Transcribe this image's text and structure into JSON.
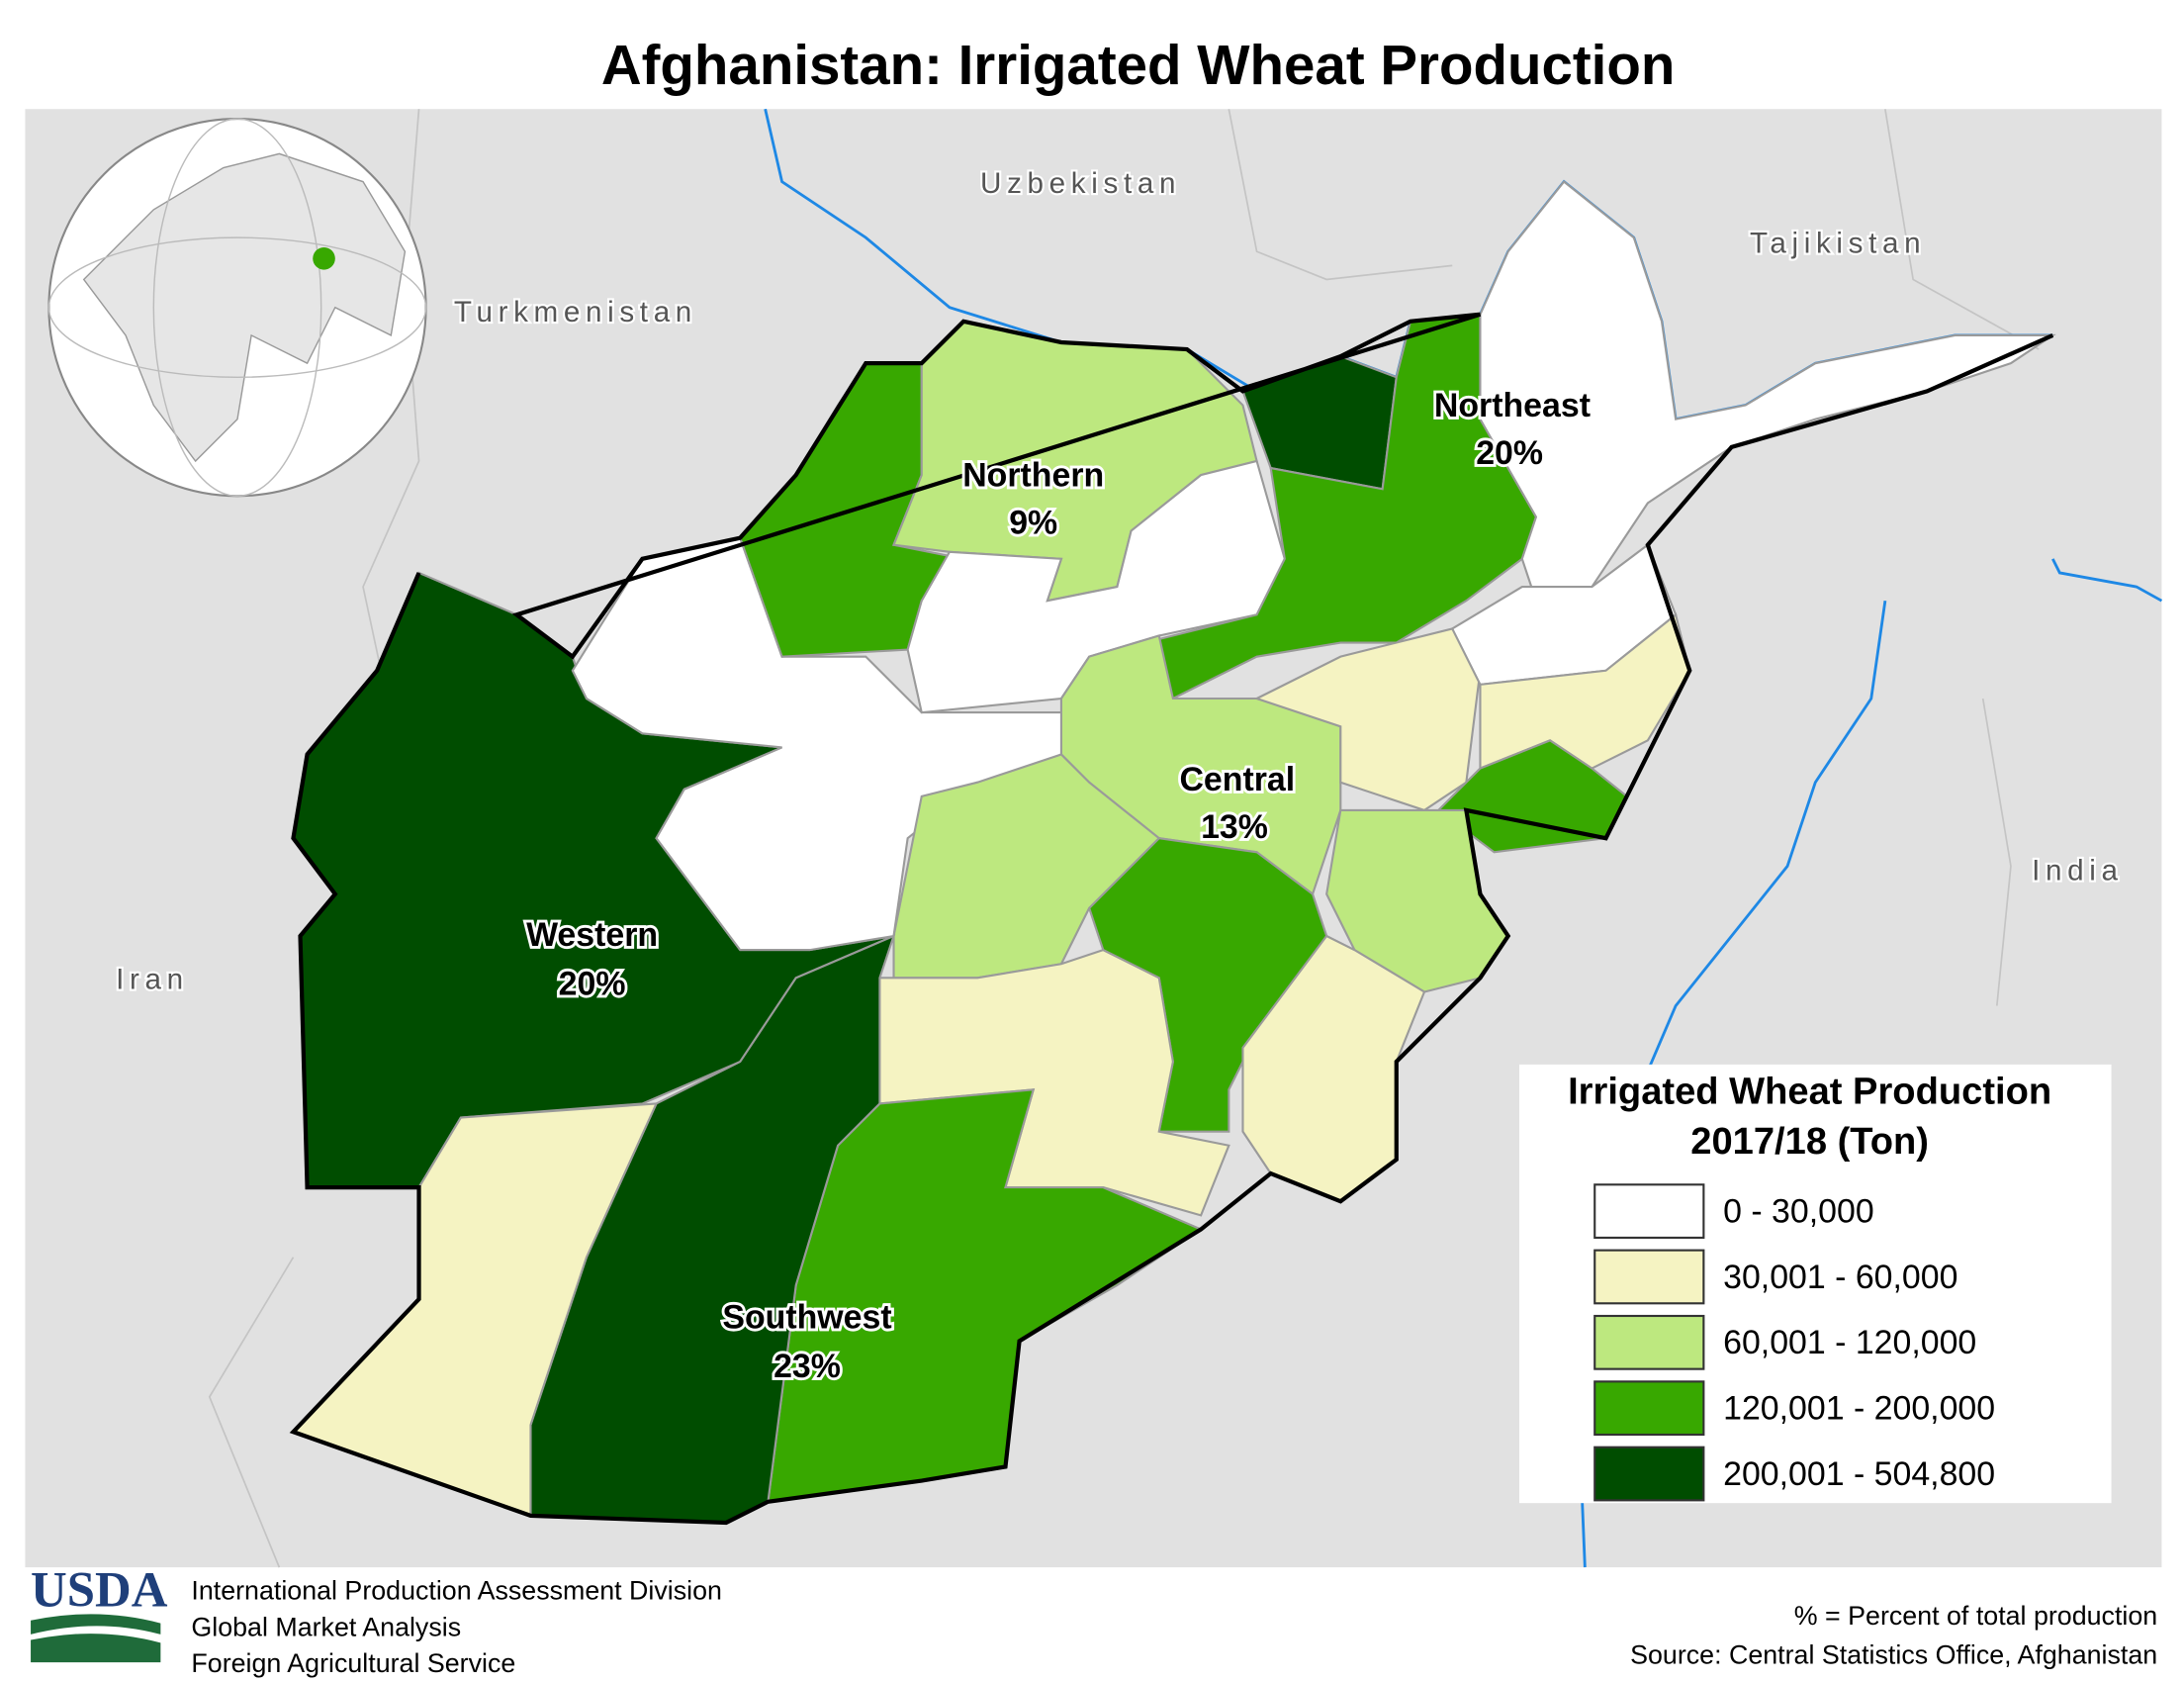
{
  "header": {
    "title": "Afghanistan: Irrigated Wheat Production"
  },
  "country_labels": [
    "Uzbekistan",
    "Tajikistan",
    "Turkmenistan",
    "Iran",
    "India"
  ],
  "regions": [
    {
      "name": "Northern",
      "share": "9%"
    },
    {
      "name": "Northeast",
      "share": "20%"
    },
    {
      "name": "Central",
      "share": "13%"
    },
    {
      "name": "Western",
      "share": "20%"
    },
    {
      "name": "Southwest",
      "share": "23%"
    }
  ],
  "legend": {
    "title": [
      "Irrigated Wheat Production",
      "2017/18 (Ton)"
    ],
    "items": [
      {
        "label": "0 - 30,000",
        "color": "#ffffff"
      },
      {
        "label": "30,001 - 60,000",
        "color": "#f5f3c2"
      },
      {
        "label": "60,001 - 120,000",
        "color": "#bde87f"
      },
      {
        "label": "120,001 - 200,000",
        "color": "#38a800"
      },
      {
        "label": "200,001 - 504,800",
        "color": "#004d00"
      }
    ]
  },
  "footer": {
    "logo": "USDA",
    "agency": [
      "International Production Assessment Division",
      "Global Market Analysis",
      "Foreign Agricultural Service"
    ],
    "notes": [
      "% = Percent of total production",
      "Source: Central Statistics Office, Afghanistan"
    ]
  }
}
